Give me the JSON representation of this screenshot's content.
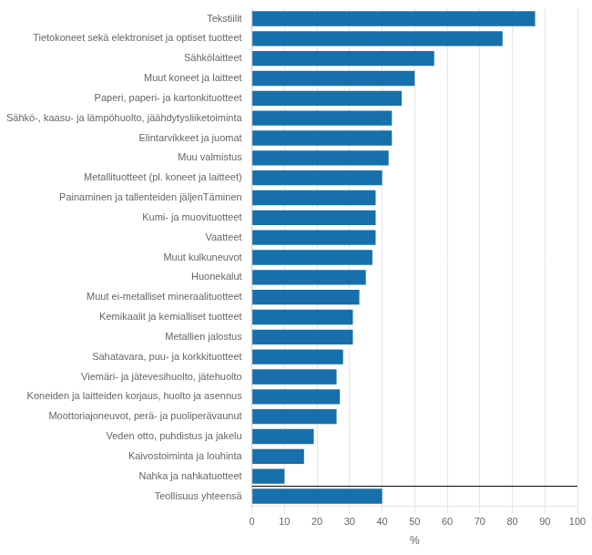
{
  "chart_data": {
    "type": "bar",
    "orientation": "horizontal",
    "categories": [
      "Teollisuus yhteensä",
      "Nahka ja nahkatuotteet",
      "Kaivostoiminta ja louhinta",
      "Veden otto, puhdistus ja jakelu",
      "Moottoriajoneuvot, perä- ja puoliperävaunut",
      "Koneiden ja laitteiden korjaus, huolto ja asennus",
      "Viemäri- ja jätevesihuolto, jätehuolto",
      "Sahatavara, puu- ja korkkituotteet",
      "Metallien jalostus",
      "Kemikaalit ja kemialliset tuotteet",
      "Muut ei-metalliset mineraalituotteet",
      "Huonekalut",
      "Muut kulkuneuvot",
      "Vaatteet",
      "Kumi- ja muovituotteet",
      "Painaminen ja tallenteiden jäljenTäminen",
      "Metallituotteet (pl. koneet ja laitteet)",
      "Muu valmistus",
      "Elintarvikkeet ja juomat",
      "Sähkö-, kaasu- ja lämpöhuolto, jäähdytysliiketoiminta",
      "Paperi, paperi- ja kartonkituotteet",
      "Muut koneet ja laitteet",
      "Sähkölaitteet",
      "Tietokoneet sekä elektroniset ja optiset tuotteet",
      "Tekstiilit"
    ],
    "values": [
      40,
      10,
      16,
      19,
      26,
      27,
      26,
      28,
      31,
      31,
      33,
      35,
      37,
      38,
      38,
      38,
      40,
      42,
      43,
      43,
      46,
      50,
      56,
      77,
      87
    ],
    "color": "#1770ab",
    "xlabel": "%",
    "xlim": [
      0,
      100
    ],
    "xticks": [
      0,
      10,
      20,
      30,
      40,
      50,
      60,
      70,
      80,
      90,
      100
    ],
    "grid": true
  }
}
